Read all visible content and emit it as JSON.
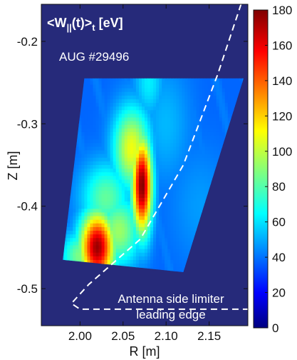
{
  "chart_data": {
    "type": "heatmap",
    "title": "<W||(t)>t [eV]",
    "title_parts": {
      "main": "<W",
      "sub1": "||",
      "mid": "(t)>",
      "sub2": "t",
      "unit": " [eV]"
    },
    "shot_label": "AUG #29496",
    "xlabel": "R [m]",
    "ylabel": "Z [m]",
    "xlim": [
      1.955,
      2.195
    ],
    "ylim": [
      -0.545,
      -0.155
    ],
    "x_ticks": [
      2.0,
      2.05,
      2.1,
      2.15
    ],
    "x_tick_labels": [
      "2.00",
      "2.05",
      "2.10",
      "2.15"
    ],
    "y_ticks": [
      -0.2,
      -0.3,
      -0.4,
      -0.5
    ],
    "y_tick_labels": [
      "-0.2",
      "-0.3",
      "-0.4",
      "-0.5"
    ],
    "colorbar": {
      "range": [
        0,
        180
      ],
      "ticks": [
        0,
        20,
        40,
        60,
        80,
        100,
        120,
        140,
        160,
        180
      ],
      "tick_labels": [
        "0",
        "20",
        "40",
        "60",
        "80",
        "100",
        "120",
        "140",
        "160",
        "180"
      ],
      "colormap": "jet"
    },
    "background_color": "#262a7a",
    "data_region": {
      "corners": [
        [
          2.005,
          -0.245
        ],
        [
          2.19,
          -0.245
        ],
        [
          2.12,
          -0.48
        ],
        [
          1.98,
          -0.465
        ]
      ]
    },
    "hotspots": [
      {
        "R": 2.072,
        "Z": -0.375,
        "value": 180,
        "sigma_R": 0.008,
        "sigma_Z": 0.04
      },
      {
        "R": 2.02,
        "Z": -0.45,
        "value": 175,
        "sigma_R": 0.014,
        "sigma_Z": 0.03
      },
      {
        "R": 2.045,
        "Z": -0.43,
        "value": 95,
        "sigma_R": 0.018,
        "sigma_Z": 0.03
      },
      {
        "R": 2.06,
        "Z": -0.33,
        "value": 110,
        "sigma_R": 0.015,
        "sigma_Z": 0.035
      },
      {
        "R": 2.08,
        "Z": -0.25,
        "value": 65,
        "sigma_R": 0.012,
        "sigma_Z": 0.03
      },
      {
        "R": 2.1,
        "Z": -0.3,
        "value": 55,
        "sigma_R": 0.02,
        "sigma_Z": 0.05
      },
      {
        "R": 2.03,
        "Z": -0.39,
        "value": 85,
        "sigma_R": 0.02,
        "sigma_Z": 0.03
      },
      {
        "R": 2.14,
        "Z": -0.4,
        "value": 50,
        "sigma_R": 0.025,
        "sigma_Z": 0.05
      },
      {
        "R": 2.0,
        "Z": -0.46,
        "value": 90,
        "sigma_R": 0.015,
        "sigma_Z": 0.02
      }
    ],
    "base_value": 45,
    "limiter_curve": {
      "points": [
        [
          2.195,
          -0.13
        ],
        [
          2.16,
          -0.24
        ],
        [
          2.12,
          -0.35
        ],
        [
          2.07,
          -0.44
        ],
        [
          2.01,
          -0.495
        ],
        [
          1.99,
          -0.518
        ],
        [
          2.0,
          -0.525
        ],
        [
          2.195,
          -0.525
        ]
      ],
      "style": "dashed",
      "color": "#ffffff"
    },
    "annotation": {
      "line1": "Antenna side limiter",
      "line2": "leading edge"
    }
  }
}
